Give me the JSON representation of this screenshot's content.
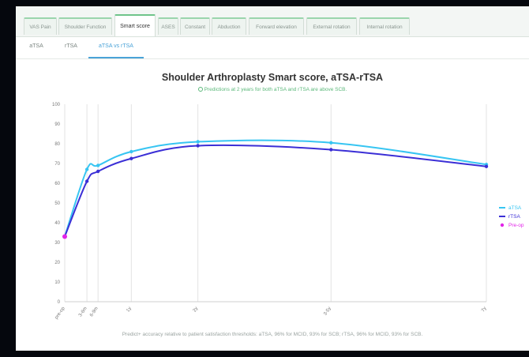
{
  "tabs": [
    {
      "label": "VAS Pain",
      "active": false
    },
    {
      "label": "Shoulder Function",
      "active": false
    },
    {
      "label": "Smart score",
      "active": true
    },
    {
      "label": "ASES",
      "active": false
    },
    {
      "label": "Constant",
      "active": false
    },
    {
      "label": "Abduction",
      "active": false
    },
    {
      "label": "Forward elevation",
      "active": false
    },
    {
      "label": "External rotation",
      "active": false
    },
    {
      "label": "Internal rotation",
      "active": false
    }
  ],
  "subtabs": [
    {
      "label": "aTSA",
      "active": false
    },
    {
      "label": "rTSA",
      "active": false
    },
    {
      "label": "aTSA vs rTSA",
      "active": true
    }
  ],
  "footnote": "Predict+ accuracy relative to patient satisfaction thresholds: aTSA, 96% for MCID, 93% for SCB; rTSA, 96% for MCID, 93% for SCB.",
  "colors": {
    "aTSA": "#37c5f2",
    "rTSA": "#3b2fd6",
    "preop": "#e225e8",
    "accent": "#4aa3d8",
    "note": "#5bb87a"
  },
  "chart_data": {
    "type": "line",
    "title": "Shoulder Arthroplasty Smart score, aTSA-rTSA",
    "subtitle": "Predictions at 2 years for both aTSA and rTSA are above SCB.",
    "categories": [
      "pre-op",
      "3-6m",
      "6-9m",
      "1y",
      "2y",
      "3-5y",
      "7y"
    ],
    "x_positions": [
      0,
      0.5,
      0.75,
      1.5,
      3,
      6,
      9.5
    ],
    "ylim": [
      0,
      100
    ],
    "yticks": [
      0,
      10,
      20,
      30,
      40,
      50,
      60,
      70,
      80,
      90,
      100
    ],
    "grid": true,
    "legend_position": "right",
    "series": [
      {
        "name": "aTSA",
        "values": [
          33,
          67,
          69,
          76,
          81,
          80.5,
          69.5
        ]
      },
      {
        "name": "rTSA",
        "values": [
          33,
          61,
          66,
          72.5,
          79,
          77,
          68.5
        ]
      }
    ],
    "preop": {
      "name": "Pre-op",
      "value": 33
    }
  }
}
